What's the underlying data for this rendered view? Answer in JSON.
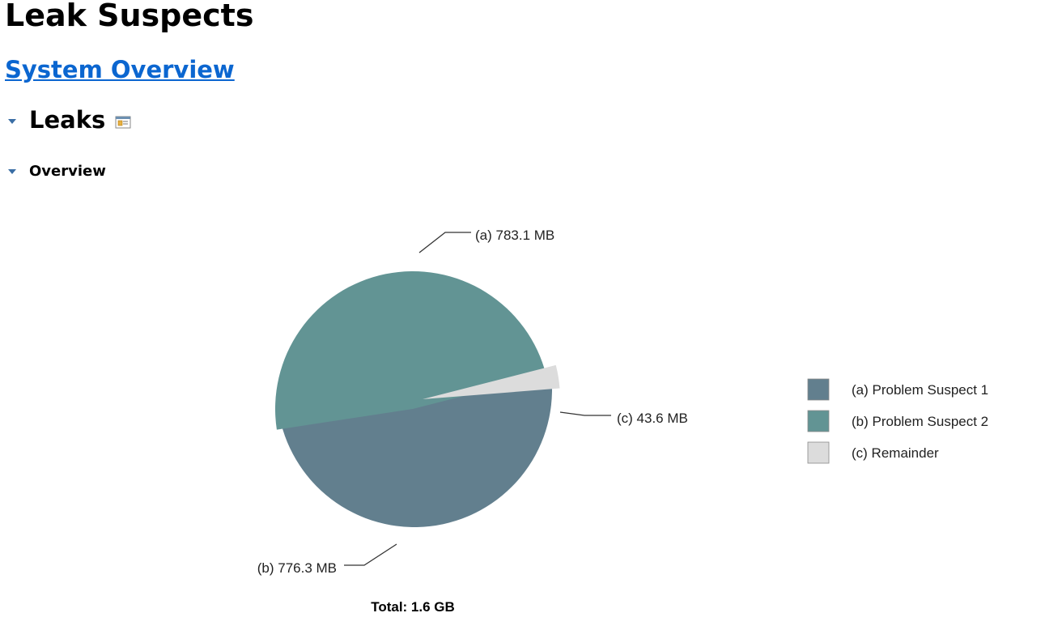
{
  "page": {
    "title": "Leak Suspects",
    "link_label": "System Overview",
    "section_title": "Leaks",
    "subsection_title": "Overview"
  },
  "icons": {
    "section_toggle": "triangle-down-icon",
    "details": "details-icon",
    "subsection_toggle": "triangle-down-icon"
  },
  "chart_data": {
    "type": "pie",
    "title": "",
    "total_label": "Total: 1.6 GB",
    "slices": [
      {
        "id": "a",
        "tag": "(a)",
        "name": "Problem Suspect 1",
        "value_label": "783.1 MB",
        "value": 783.1,
        "color": "#627f8e"
      },
      {
        "id": "b",
        "tag": "(b)",
        "name": "Problem Suspect 2",
        "value_label": "776.3 MB",
        "value": 776.3,
        "color": "#629494"
      },
      {
        "id": "c",
        "tag": "(c)",
        "name": "Remainder",
        "value_label": "43.6 MB",
        "value": 43.6,
        "color": "#dcdcdc"
      }
    ],
    "legend_position": "right"
  }
}
